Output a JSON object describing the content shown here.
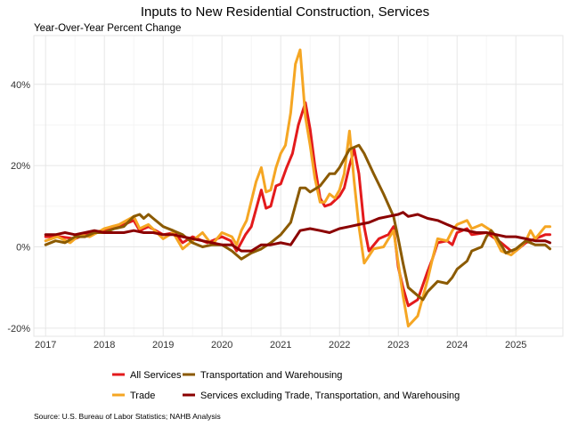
{
  "chart_data": {
    "type": "line",
    "title": "Inputs to New Residential Construction, Services",
    "subtitle": "Year-Over-Year Percent Change",
    "source": "Source: U.S. Bureau of Labor Statistics; NAHB Analysis",
    "xlim": [
      2016.8,
      2025.8
    ],
    "ylim": [
      -22,
      52
    ],
    "x_ticks": [
      2017,
      2018,
      2019,
      2020,
      2021,
      2022,
      2023,
      2024,
      2025
    ],
    "x_tick_labels": [
      "2017",
      "2018",
      "2019",
      "2020",
      "2021",
      "2022",
      "2023",
      "2024",
      "2025"
    ],
    "y_ticks": [
      -20,
      0,
      20,
      40
    ],
    "y_tick_labels": [
      "-20%",
      "0%",
      "20%",
      "40%"
    ],
    "grid": true,
    "legend": "bottom",
    "series": [
      {
        "name": "All Services",
        "color": "#e31a1c",
        "points": [
          [
            2017.0,
            2.5
          ],
          [
            2017.25,
            2.5
          ],
          [
            2017.5,
            2.0
          ],
          [
            2017.75,
            3.5
          ],
          [
            2018.0,
            4.0
          ],
          [
            2018.25,
            5.0
          ],
          [
            2018.5,
            6.5
          ],
          [
            2018.6,
            4.0
          ],
          [
            2018.75,
            5.0
          ],
          [
            2019.0,
            3.0
          ],
          [
            2019.2,
            3.5
          ],
          [
            2019.33,
            1.0
          ],
          [
            2019.5,
            2.5
          ],
          [
            2019.75,
            1.0
          ],
          [
            2020.0,
            2.5
          ],
          [
            2020.15,
            1.5
          ],
          [
            2020.25,
            -1.0
          ],
          [
            2020.4,
            3.0
          ],
          [
            2020.5,
            5.0
          ],
          [
            2020.67,
            14.0
          ],
          [
            2020.75,
            9.5
          ],
          [
            2020.83,
            10.0
          ],
          [
            2020.92,
            15.0
          ],
          [
            2021.0,
            15.5
          ],
          [
            2021.1,
            19.5
          ],
          [
            2021.2,
            23.0
          ],
          [
            2021.3,
            30.0
          ],
          [
            2021.42,
            35.5
          ],
          [
            2021.5,
            29.0
          ],
          [
            2021.58,
            20.0
          ],
          [
            2021.67,
            12.0
          ],
          [
            2021.75,
            10.0
          ],
          [
            2021.85,
            10.5
          ],
          [
            2022.0,
            12.5
          ],
          [
            2022.08,
            14.5
          ],
          [
            2022.17,
            20.0
          ],
          [
            2022.25,
            24.0
          ],
          [
            2022.33,
            18.0
          ],
          [
            2022.42,
            5.0
          ],
          [
            2022.5,
            -1.0
          ],
          [
            2022.67,
            2.0
          ],
          [
            2022.83,
            3.0
          ],
          [
            2022.92,
            5.0
          ],
          [
            2023.0,
            -5.0
          ],
          [
            2023.08,
            -10.0
          ],
          [
            2023.17,
            -14.5
          ],
          [
            2023.33,
            -13.0
          ],
          [
            2023.5,
            -6.0
          ],
          [
            2023.58,
            -3.0
          ],
          [
            2023.67,
            1.0
          ],
          [
            2023.83,
            1.5
          ],
          [
            2023.92,
            0.5
          ],
          [
            2024.0,
            3.5
          ],
          [
            2024.17,
            4.5
          ],
          [
            2024.25,
            3.0
          ],
          [
            2024.5,
            3.5
          ],
          [
            2024.75,
            1.0
          ],
          [
            2024.92,
            -1.0
          ],
          [
            2025.0,
            -1.0
          ],
          [
            2025.17,
            1.0
          ],
          [
            2025.33,
            2.0
          ],
          [
            2025.5,
            3.0
          ],
          [
            2025.58,
            3.0
          ]
        ]
      },
      {
        "name": "Trade",
        "color": "#f5a623",
        "points": [
          [
            2017.0,
            1.5
          ],
          [
            2017.2,
            2.5
          ],
          [
            2017.42,
            1.0
          ],
          [
            2017.58,
            3.0
          ],
          [
            2017.75,
            2.5
          ],
          [
            2018.0,
            4.5
          ],
          [
            2018.25,
            5.5
          ],
          [
            2018.5,
            7.5
          ],
          [
            2018.6,
            4.5
          ],
          [
            2018.75,
            5.5
          ],
          [
            2019.0,
            2.0
          ],
          [
            2019.17,
            3.5
          ],
          [
            2019.33,
            -0.5
          ],
          [
            2019.5,
            1.5
          ],
          [
            2019.67,
            3.5
          ],
          [
            2019.83,
            0.5
          ],
          [
            2020.0,
            3.5
          ],
          [
            2020.17,
            2.5
          ],
          [
            2020.25,
            0.5
          ],
          [
            2020.33,
            4.0
          ],
          [
            2020.42,
            6.5
          ],
          [
            2020.58,
            16.0
          ],
          [
            2020.67,
            19.5
          ],
          [
            2020.75,
            13.5
          ],
          [
            2020.83,
            14.0
          ],
          [
            2020.92,
            19.5
          ],
          [
            2021.0,
            23.0
          ],
          [
            2021.08,
            25.0
          ],
          [
            2021.17,
            33.0
          ],
          [
            2021.25,
            45.0
          ],
          [
            2021.33,
            48.5
          ],
          [
            2021.42,
            32.0
          ],
          [
            2021.5,
            25.0
          ],
          [
            2021.58,
            17.0
          ],
          [
            2021.67,
            11.0
          ],
          [
            2021.75,
            11.0
          ],
          [
            2021.83,
            13.0
          ],
          [
            2021.92,
            12.0
          ],
          [
            2022.0,
            14.0
          ],
          [
            2022.08,
            18.0
          ],
          [
            2022.17,
            28.5
          ],
          [
            2022.25,
            16.0
          ],
          [
            2022.33,
            5.0
          ],
          [
            2022.42,
            -4.0
          ],
          [
            2022.58,
            -0.5
          ],
          [
            2022.75,
            0.0
          ],
          [
            2022.92,
            4.0
          ],
          [
            2023.0,
            -4.0
          ],
          [
            2023.08,
            -12.0
          ],
          [
            2023.17,
            -19.5
          ],
          [
            2023.33,
            -17.0
          ],
          [
            2023.5,
            -8.0
          ],
          [
            2023.58,
            -3.0
          ],
          [
            2023.67,
            2.0
          ],
          [
            2023.83,
            1.5
          ],
          [
            2023.92,
            4.0
          ],
          [
            2024.0,
            5.5
          ],
          [
            2024.17,
            6.5
          ],
          [
            2024.25,
            4.5
          ],
          [
            2024.42,
            5.5
          ],
          [
            2024.58,
            4.0
          ],
          [
            2024.75,
            -1.0
          ],
          [
            2024.92,
            -2.0
          ],
          [
            2025.08,
            0.0
          ],
          [
            2025.17,
            1.5
          ],
          [
            2025.25,
            4.0
          ],
          [
            2025.33,
            2.0
          ],
          [
            2025.5,
            5.0
          ],
          [
            2025.58,
            5.0
          ]
        ]
      },
      {
        "name": "Transportation and Warehousing",
        "color": "#8b5a00",
        "points": [
          [
            2017.0,
            0.5
          ],
          [
            2017.17,
            1.5
          ],
          [
            2017.33,
            1.0
          ],
          [
            2017.5,
            2.5
          ],
          [
            2017.67,
            2.5
          ],
          [
            2017.83,
            3.5
          ],
          [
            2018.0,
            3.5
          ],
          [
            2018.17,
            4.5
          ],
          [
            2018.33,
            5.0
          ],
          [
            2018.5,
            7.5
          ],
          [
            2018.6,
            8.0
          ],
          [
            2018.67,
            7.0
          ],
          [
            2018.75,
            8.0
          ],
          [
            2018.83,
            7.0
          ],
          [
            2019.0,
            5.0
          ],
          [
            2019.17,
            4.0
          ],
          [
            2019.33,
            3.0
          ],
          [
            2019.5,
            1.0
          ],
          [
            2019.67,
            0.0
          ],
          [
            2019.83,
            0.5
          ],
          [
            2020.0,
            0.5
          ],
          [
            2020.17,
            -1.0
          ],
          [
            2020.33,
            -3.0
          ],
          [
            2020.5,
            -1.5
          ],
          [
            2020.67,
            -0.5
          ],
          [
            2020.83,
            1.0
          ],
          [
            2021.0,
            3.0
          ],
          [
            2021.17,
            6.0
          ],
          [
            2021.33,
            14.5
          ],
          [
            2021.42,
            14.5
          ],
          [
            2021.5,
            13.5
          ],
          [
            2021.67,
            15.0
          ],
          [
            2021.83,
            18.0
          ],
          [
            2021.92,
            18.0
          ],
          [
            2022.0,
            19.5
          ],
          [
            2022.17,
            24.0
          ],
          [
            2022.33,
            25.0
          ],
          [
            2022.42,
            23.0
          ],
          [
            2022.58,
            18.0
          ],
          [
            2022.75,
            13.0
          ],
          [
            2022.92,
            7.5
          ],
          [
            2023.0,
            2.0
          ],
          [
            2023.08,
            -4.0
          ],
          [
            2023.17,
            -10.0
          ],
          [
            2023.33,
            -12.0
          ],
          [
            2023.42,
            -13.0
          ],
          [
            2023.5,
            -11.0
          ],
          [
            2023.67,
            -8.5
          ],
          [
            2023.83,
            -9.0
          ],
          [
            2023.92,
            -7.5
          ],
          [
            2024.0,
            -5.5
          ],
          [
            2024.17,
            -3.5
          ],
          [
            2024.25,
            -1.0
          ],
          [
            2024.42,
            0.0
          ],
          [
            2024.5,
            2.5
          ],
          [
            2024.58,
            4.0
          ],
          [
            2024.67,
            2.5
          ],
          [
            2024.75,
            0.5
          ],
          [
            2024.83,
            -1.5
          ],
          [
            2025.0,
            -0.5
          ],
          [
            2025.17,
            1.5
          ],
          [
            2025.33,
            0.5
          ],
          [
            2025.5,
            0.5
          ],
          [
            2025.58,
            -0.5
          ]
        ]
      },
      {
        "name": "Services excluding Trade, Transportation, and Warehousing",
        "color": "#8b0000",
        "points": [
          [
            2017.0,
            3.0
          ],
          [
            2017.17,
            3.0
          ],
          [
            2017.33,
            3.5
          ],
          [
            2017.5,
            3.0
          ],
          [
            2017.67,
            3.5
          ],
          [
            2017.83,
            4.0
          ],
          [
            2018.0,
            3.5
          ],
          [
            2018.17,
            3.5
          ],
          [
            2018.33,
            3.5
          ],
          [
            2018.5,
            4.0
          ],
          [
            2018.67,
            3.5
          ],
          [
            2018.83,
            3.5
          ],
          [
            2019.0,
            3.0
          ],
          [
            2019.17,
            3.0
          ],
          [
            2019.33,
            2.5
          ],
          [
            2019.5,
            2.0
          ],
          [
            2019.67,
            1.5
          ],
          [
            2019.83,
            1.0
          ],
          [
            2020.0,
            0.5
          ],
          [
            2020.17,
            0.5
          ],
          [
            2020.33,
            -1.0
          ],
          [
            2020.5,
            -1.0
          ],
          [
            2020.67,
            0.5
          ],
          [
            2020.83,
            0.5
          ],
          [
            2021.0,
            1.0
          ],
          [
            2021.17,
            0.5
          ],
          [
            2021.33,
            4.0
          ],
          [
            2021.5,
            4.5
          ],
          [
            2021.67,
            4.0
          ],
          [
            2021.83,
            3.5
          ],
          [
            2022.0,
            4.5
          ],
          [
            2022.17,
            5.0
          ],
          [
            2022.33,
            5.5
          ],
          [
            2022.5,
            6.0
          ],
          [
            2022.67,
            7.0
          ],
          [
            2022.83,
            7.5
          ],
          [
            2023.0,
            8.0
          ],
          [
            2023.08,
            8.5
          ],
          [
            2023.17,
            7.5
          ],
          [
            2023.33,
            8.0
          ],
          [
            2023.5,
            7.0
          ],
          [
            2023.67,
            6.5
          ],
          [
            2023.83,
            5.5
          ],
          [
            2024.0,
            4.5
          ],
          [
            2024.17,
            4.0
          ],
          [
            2024.33,
            3.5
          ],
          [
            2024.5,
            3.5
          ],
          [
            2024.67,
            3.0
          ],
          [
            2024.83,
            2.5
          ],
          [
            2025.0,
            2.5
          ],
          [
            2025.17,
            2.0
          ],
          [
            2025.33,
            1.5
          ],
          [
            2025.5,
            1.5
          ],
          [
            2025.58,
            1.0
          ]
        ]
      }
    ]
  }
}
